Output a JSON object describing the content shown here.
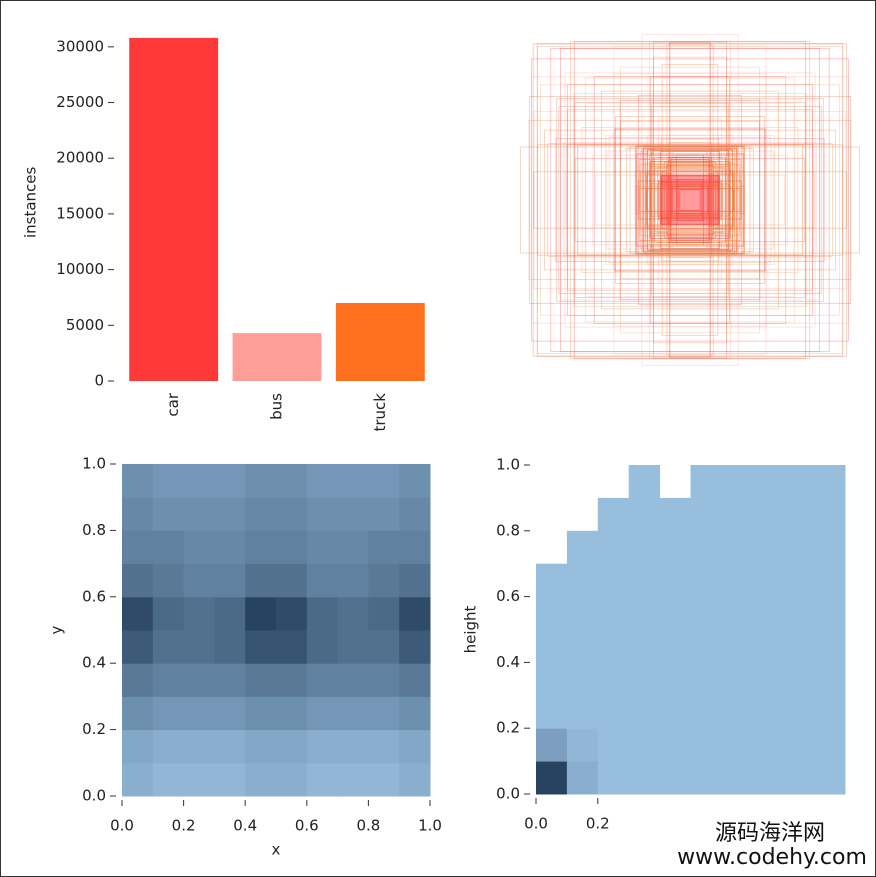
{
  "chart_data": [
    {
      "type": "bar",
      "y_label": "instances",
      "categories": [
        "car",
        "bus",
        "truck"
      ],
      "values": [
        30800,
        4300,
        7000
      ],
      "colors": [
        "#ff3838",
        "#ff9d97",
        "#ff701f"
      ],
      "ylim": [
        0,
        31000
      ],
      "yticks": [
        0,
        5000,
        10000,
        15000,
        20000,
        25000,
        30000
      ]
    },
    {
      "type": "heatmap",
      "x_label": "x",
      "y_label": "y",
      "xlim": [
        0,
        1
      ],
      "ylim": [
        0,
        1
      ],
      "xticks": [
        {
          "value": 0,
          "label": "0.0"
        },
        0.2,
        0.4,
        0.6,
        0.8,
        {
          "value": 1,
          "label": "1.0"
        }
      ],
      "yticks": [
        {
          "value": 0,
          "label": "0.0"
        },
        0.2,
        0.4,
        0.6,
        0.8,
        {
          "value": 1,
          "label": "1.0"
        }
      ],
      "z": [
        [
          0.2,
          0.15,
          0.15,
          0.15,
          0.2,
          0.2,
          0.15,
          0.15,
          0.15,
          0.2
        ],
        [
          0.25,
          0.2,
          0.2,
          0.2,
          0.25,
          0.25,
          0.2,
          0.2,
          0.2,
          0.25
        ],
        [
          0.4,
          0.35,
          0.35,
          0.35,
          0.4,
          0.4,
          0.35,
          0.35,
          0.35,
          0.4
        ],
        [
          0.55,
          0.5,
          0.5,
          0.5,
          0.55,
          0.55,
          0.5,
          0.5,
          0.5,
          0.55
        ],
        [
          0.75,
          0.6,
          0.6,
          0.65,
          0.8,
          0.8,
          0.65,
          0.6,
          0.6,
          0.75
        ],
        [
          0.85,
          0.65,
          0.6,
          0.65,
          0.9,
          0.85,
          0.65,
          0.6,
          0.65,
          0.85
        ],
        [
          0.6,
          0.55,
          0.5,
          0.5,
          0.6,
          0.6,
          0.5,
          0.5,
          0.55,
          0.6
        ],
        [
          0.5,
          0.5,
          0.45,
          0.45,
          0.5,
          0.5,
          0.45,
          0.45,
          0.5,
          0.5
        ],
        [
          0.45,
          0.4,
          0.4,
          0.4,
          0.45,
          0.45,
          0.4,
          0.4,
          0.4,
          0.45
        ],
        [
          0.4,
          0.35,
          0.35,
          0.35,
          0.4,
          0.4,
          0.35,
          0.35,
          0.35,
          0.4
        ]
      ]
    },
    {
      "type": "heatmap",
      "y_label": "height",
      "xlim": [
        0,
        1
      ],
      "ylim": [
        0,
        1
      ],
      "xticks": [
        {
          "value": 0,
          "label": "0.0"
        },
        0.2
      ],
      "yticks": [
        {
          "value": 0,
          "label": "0.0"
        },
        0.2,
        0.4,
        0.6,
        0.8,
        {
          "value": 1,
          "label": "1.0"
        }
      ],
      "z": [
        [
          0.9,
          0.2,
          0.1,
          0.1,
          0.1,
          0.1,
          0.1,
          0.1,
          0.1,
          0.1
        ],
        [
          0.3,
          0.15,
          0.1,
          0.1,
          0.1,
          0.1,
          0.1,
          0.1,
          0.1,
          0.1
        ],
        [
          0.1,
          0.1,
          0.1,
          0.1,
          0.1,
          0.1,
          0.1,
          0.1,
          0.1,
          0.1
        ],
        [
          0.1,
          0.1,
          0.1,
          0.1,
          0.1,
          0.1,
          0.1,
          0.1,
          0.1,
          0.1
        ],
        [
          0.1,
          0.1,
          0.1,
          0.1,
          0.1,
          0.1,
          0.1,
          0.1,
          0.1,
          0.1
        ],
        [
          0.1,
          0.1,
          0.1,
          0.1,
          0.1,
          0.1,
          0.1,
          0.1,
          0.1,
          0.1
        ],
        [
          0.1,
          0.1,
          0.1,
          0.1,
          0.1,
          0.1,
          0.1,
          0.1,
          0.1,
          0.1
        ],
        [
          null,
          0.1,
          0.1,
          0.1,
          0.1,
          0.1,
          0.1,
          0.1,
          0.1,
          0.1
        ],
        [
          null,
          null,
          0.1,
          0.1,
          0.1,
          0.1,
          0.1,
          0.1,
          0.1,
          0.1
        ],
        [
          null,
          null,
          null,
          0.1,
          null,
          0.1,
          0.1,
          0.1,
          0.1,
          0.1
        ]
      ]
    }
  ],
  "watermark": {
    "line1": "源码海洋网",
    "line2": "www.codehy.com"
  }
}
